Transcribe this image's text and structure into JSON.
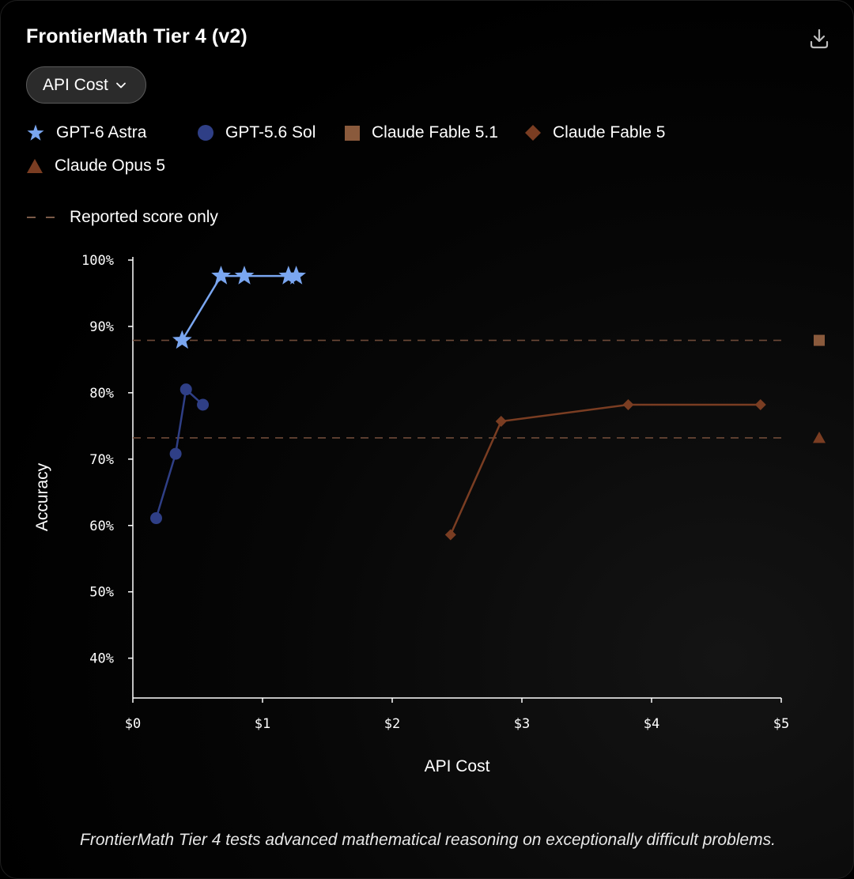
{
  "header": {
    "title": "FrontierMath Tier 4 (v2)",
    "download_icon": "download-icon"
  },
  "metric_select": {
    "selected": "API Cost"
  },
  "legend": {
    "reference_label": "Reported score only"
  },
  "caption": "FrontierMath Tier 4 tests advanced mathematical reasoning on exceptionally difficult problems.",
  "colors": {
    "gpt6_astra": "#7aa6f0",
    "gpt56_sol": "#2f3f86",
    "claude_fable_51": "#8a5a3c",
    "claude_fable_5": "#7a3d22",
    "claude_opus_5": "#7a3d22",
    "reference_line": "#6e4a38",
    "axis": "#ffffff"
  },
  "chart_data": {
    "type": "scatter",
    "xlabel": "API Cost",
    "ylabel": "Accuracy",
    "xlim": [
      0,
      5
    ],
    "ylim": [
      34,
      100
    ],
    "x_ticks": [
      {
        "value": 0,
        "label": "$0"
      },
      {
        "value": 1,
        "label": "$1"
      },
      {
        "value": 2,
        "label": "$2"
      },
      {
        "value": 3,
        "label": "$3"
      },
      {
        "value": 4,
        "label": "$4"
      },
      {
        "value": 5,
        "label": "$5"
      }
    ],
    "y_ticks": [
      {
        "value": 40,
        "label": "40%"
      },
      {
        "value": 50,
        "label": "50%"
      },
      {
        "value": 60,
        "label": "60%"
      },
      {
        "value": 70,
        "label": "70%"
      },
      {
        "value": 80,
        "label": "80%"
      },
      {
        "value": 90,
        "label": "90%"
      },
      {
        "value": 100,
        "label": "100%"
      }
    ],
    "grid": false,
    "legend_position": "top",
    "series": [
      {
        "name": "GPT-6 Astra",
        "marker": "star",
        "color": "#7aa6f0",
        "connected": true,
        "x": [
          0.38,
          0.68,
          0.86,
          1.2,
          1.26
        ],
        "y": [
          87.9,
          97.6,
          97.6,
          97.6,
          97.6
        ]
      },
      {
        "name": "GPT-5.6 Sol",
        "marker": "circle",
        "color": "#2f3f86",
        "connected": true,
        "x": [
          0.18,
          0.33,
          0.41,
          0.54
        ],
        "y": [
          61.1,
          70.8,
          80.5,
          78.2
        ]
      },
      {
        "name": "Claude Fable 5.1",
        "marker": "square",
        "color": "#8a5a3c",
        "connected": false,
        "reported_only": true,
        "reported_score": 87.9
      },
      {
        "name": "Claude Fable 5",
        "marker": "diamond",
        "color": "#7a3d22",
        "connected": true,
        "x": [
          2.45,
          2.84,
          3.82,
          4.84
        ],
        "y": [
          58.6,
          75.7,
          78.2,
          78.2
        ]
      },
      {
        "name": "Claude Opus 5",
        "marker": "triangle",
        "color": "#7a3d22",
        "connected": false,
        "reported_only": true,
        "reported_score": 73.2
      }
    ]
  }
}
